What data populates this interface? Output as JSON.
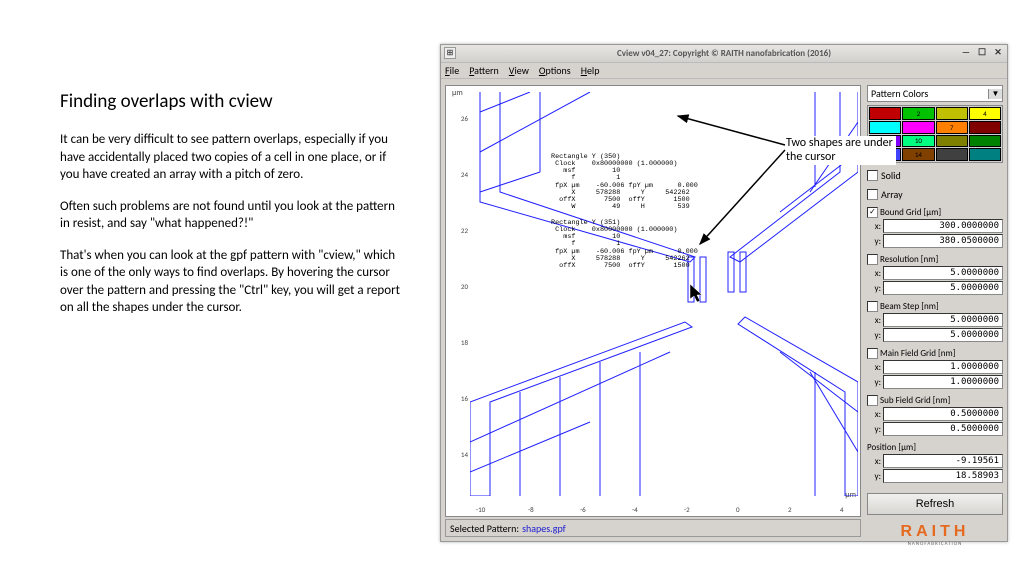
{
  "left": {
    "title": "Finding overlaps with cview",
    "p1": "It can be very difficult to see pattern overlaps, especially if you have accidentally placed two copies of a cell in one place, or if you have created an array with a pitch of zero.",
    "p2": "Often such problems are not found until you look at the pattern in resist, and say \"what happened?!\"",
    "p3": "That's when you can look at the gpf pattern with \"cview,\" which is one of the only ways to find overlaps. By hovering the cursor over the pattern  and pressing the \"Ctrl\" key, you will get a report on all the shapes under the cursor."
  },
  "window": {
    "title": "Cview v04_27: Copyright © RAITH nanofabrication (2016)",
    "menu": [
      "File",
      "Pattern",
      "View",
      "Options",
      "Help"
    ],
    "status_label": "Selected Pattern:",
    "status_file": "shapes.gpf"
  },
  "axes": {
    "unit_y": "µm",
    "unit_x": "µm",
    "yticks": [
      26,
      24,
      22,
      20,
      18,
      16,
      14
    ],
    "xticks": [
      -10,
      -8,
      -6,
      -4,
      -2,
      0,
      2,
      4
    ]
  },
  "shape_reports": [
    "Rectangle Y (350)\n Clock    0x80000000 (1.000000)\n   msf         10\n     f          1\n fpX µm    -60.006 fpY µm      0.000\n     X     578288     Y     542262\n  offX       7500  offY       1500\n     W         49     H        539",
    "Rectangle Y (351)\n Clock    0x80000000 (1.000000)\n   msf         10\n     f          1\n fpX µm    -60.006 fpY µm      0.000\n     X     578288     Y     542262\n  offX       7500  offY       1500"
  ],
  "callout": "Two shapes are under the cursor",
  "panel": {
    "dropdown": "Pattern Colors",
    "palette_colors": [
      "#c00000",
      "#00c000",
      "#c0c000",
      "#ffff00",
      "#00ffff",
      "#ff00ff",
      "#ff8000",
      "#800000",
      "#8000ff",
      "#00ff80",
      "#808000",
      "#008000",
      "#4040ff",
      "#804000",
      "#404040",
      "#008080"
    ],
    "palette_labels": [
      "",
      "2",
      "",
      "4",
      "",
      "",
      "7",
      "",
      "",
      "10",
      "",
      "",
      "13",
      "14",
      "",
      ""
    ],
    "solid_label": "Solid",
    "array_label": "Array",
    "groups": [
      {
        "title": "Bound Grid [µm]",
        "chk": true,
        "x": "300.0000000",
        "y": "380.0500000"
      },
      {
        "title": "Resolution [nm]",
        "chk": false,
        "x": "5.0000000",
        "y": "5.0000000"
      },
      {
        "title": "Beam Step [nm]",
        "chk": false,
        "x": "5.0000000",
        "y": "5.0000000"
      },
      {
        "title": "Main Field Grid [nm]",
        "chk": false,
        "x": "1.0000000",
        "y": "1.0000000"
      },
      {
        "title": "Sub Field Grid [nm]",
        "chk": false,
        "x": "0.5000000",
        "y": "0.5000000"
      },
      {
        "title": "Position [µm]",
        "chk": null,
        "x": "-9.19561",
        "y": "18.58903"
      }
    ],
    "refresh": "Refresh",
    "logo": "RAITH",
    "logo_sub": "NANOFABRICATION"
  }
}
